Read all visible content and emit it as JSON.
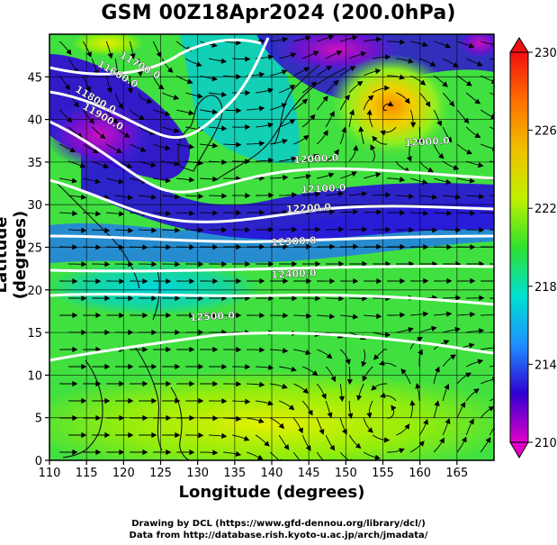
{
  "chart_data": {
    "type": "heatmap",
    "title": "GSM 00Z18Apr2024 (200.0hPa)",
    "xlabel": "Longitude (degrees)",
    "ylabel": "Latitude  (degrees)",
    "xlim": [
      110,
      170
    ],
    "ylim": [
      0,
      50
    ],
    "xticks": [
      "110",
      "115",
      "120",
      "125",
      "130",
      "135",
      "140",
      "145",
      "150",
      "155",
      "160",
      "165"
    ],
    "yticks": [
      "0",
      "5",
      "10",
      "15",
      "20",
      "25",
      "30",
      "35",
      "40",
      "45"
    ],
    "grid": true,
    "colorbar": {
      "min": 210,
      "max": 230,
      "ticks": [
        "210",
        "214",
        "218",
        "222",
        "226",
        "230"
      ],
      "colors": [
        "#e000c8",
        "#3000d0",
        "#1e90ff",
        "#00e0d0",
        "#30e030",
        "#c0f000",
        "#f0c000",
        "#ff7000",
        "#f01010"
      ]
    },
    "contours": [
      {
        "label": "11600.0",
        "lon": 119,
        "lat": 45
      },
      {
        "label": "11700.0",
        "lon": 122,
        "lat": 46
      },
      {
        "label": "11800.0",
        "lon": 116,
        "lat": 42
      },
      {
        "label": "11900.0",
        "lon": 117,
        "lat": 40
      },
      {
        "label": "12000.0",
        "lon": 146,
        "lat": 35
      },
      {
        "label": "12100.0",
        "lon": 147,
        "lat": 31.5
      },
      {
        "label": "12200.0",
        "lon": 145,
        "lat": 29.2
      },
      {
        "label": "12300.0",
        "lon": 143,
        "lat": 25.3
      },
      {
        "label": "12400.0",
        "lon": 143,
        "lat": 21.5
      },
      {
        "label": "12500.0",
        "lon": 132,
        "lat": 16.5
      },
      {
        "label": "12000.0",
        "lon": 161,
        "lat": 37
      }
    ]
  },
  "credits": {
    "line1": "Drawing by DCL (https://www.gfd-dennou.org/library/dcl/)",
    "line2": "Data from http://database.rish.kyoto-u.ac.jp/arch/jmadata/"
  }
}
